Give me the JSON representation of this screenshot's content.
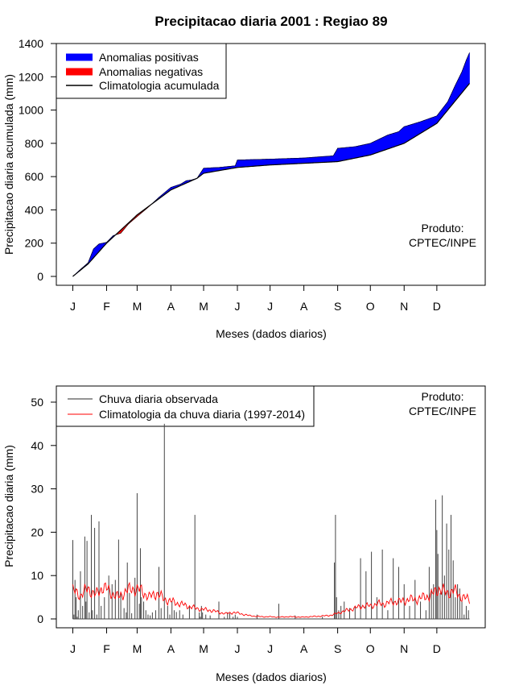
{
  "chart_data": [
    {
      "type": "area",
      "title": "Precipitacao diaria 2001 : Regiao 89",
      "xlabel": "Meses (dados diarios)",
      "ylabel": "Precipitacao diaria acumulada (mm)",
      "xlim": [
        1,
        365
      ],
      "ylim": [
        0,
        1400
      ],
      "yticks": [
        0,
        200,
        400,
        600,
        800,
        1000,
        1200,
        1400
      ],
      "month_labels": [
        "J",
        "F",
        "M",
        "A",
        "M",
        "J",
        "J",
        "A",
        "S",
        "O",
        "N",
        "D"
      ],
      "month_days": [
        1,
        32,
        60,
        91,
        121,
        152,
        182,
        213,
        244,
        274,
        305,
        335
      ],
      "legend": {
        "position": "top-left",
        "items": [
          {
            "label": "Anomalias positivas",
            "color": "#0000ff",
            "style": "thick-line"
          },
          {
            "label": "Anomalias negativas",
            "color": "#ff0000",
            "style": "thick-line"
          },
          {
            "label": "Climatologia acumulada",
            "color": "#000000",
            "style": "line"
          }
        ]
      },
      "annotation": [
        "Produto:",
        "CPTEC/INPE"
      ],
      "climatology_cumulative": {
        "day": [
          1,
          15,
          32,
          60,
          91,
          115,
          121,
          152,
          182,
          213,
          244,
          274,
          305,
          335,
          365
        ],
        "value": [
          0,
          75,
          200,
          370,
          520,
          590,
          620,
          655,
          670,
          680,
          690,
          730,
          800,
          920,
          1160
        ]
      },
      "observed_cumulative": {
        "day": [
          1,
          8,
          15,
          20,
          25,
          32,
          38,
          45,
          52,
          60,
          70,
          80,
          91,
          100,
          105,
          110,
          115,
          121,
          125,
          135,
          150,
          152,
          182,
          213,
          240,
          244,
          260,
          274,
          290,
          300,
          305,
          320,
          335,
          345,
          352,
          358,
          362,
          365
        ],
        "value": [
          0,
          42,
          82,
          165,
          195,
          205,
          245,
          260,
          315,
          360,
          415,
          475,
          535,
          555,
          575,
          580,
          590,
          650,
          652,
          655,
          665,
          700,
          705,
          712,
          725,
          770,
          780,
          800,
          850,
          870,
          900,
          930,
          965,
          1050,
          1150,
          1230,
          1300,
          1345
        ]
      }
    },
    {
      "type": "bar",
      "xlabel": "Meses (dados diarios)",
      "ylabel": "Precipitacao diaria (mm)",
      "xlim": [
        1,
        365
      ],
      "ylim": [
        0,
        50
      ],
      "yticks": [
        0,
        10,
        20,
        30,
        40,
        50
      ],
      "month_labels": [
        "J",
        "F",
        "M",
        "A",
        "M",
        "J",
        "J",
        "A",
        "S",
        "O",
        "N",
        "D"
      ],
      "month_days": [
        1,
        32,
        60,
        91,
        121,
        152,
        182,
        213,
        244,
        274,
        305,
        335
      ],
      "legend": {
        "position": "top-left",
        "items": [
          {
            "label": "Chuva diaria observada",
            "color": "#555555",
            "style": "line"
          },
          {
            "label": "Climatologia da chuva diaria (1997-2014)",
            "color": "#ff0000",
            "style": "line"
          }
        ]
      },
      "annotation": [
        "Produto:",
        "CPTEC/INPE"
      ],
      "observed_daily": {
        "day": [
          1,
          2,
          3,
          4,
          5,
          6,
          8,
          10,
          12,
          13,
          14,
          16,
          18,
          19,
          21,
          23,
          25,
          27,
          30,
          34,
          37,
          40,
          43,
          45,
          48,
          50,
          51,
          53,
          55,
          58,
          60,
          62,
          63,
          64,
          66,
          68,
          70,
          72,
          74,
          77,
          80,
          82,
          85,
          88,
          90,
          92,
          94,
          96,
          99,
          102,
          108,
          113,
          117,
          118,
          119,
          120,
          123,
          127,
          135,
          140,
          143,
          145,
          148,
          150,
          152,
          170,
          190,
          205,
          230,
          241,
          242,
          243,
          245,
          247,
          250,
          255,
          260,
          265,
          270,
          275,
          280,
          285,
          290,
          295,
          300,
          305,
          310,
          315,
          320,
          325,
          328,
          330,
          332,
          334,
          335,
          336,
          338,
          340,
          342,
          344,
          346,
          348,
          350,
          352,
          354,
          356,
          358,
          360,
          362,
          364
        ],
        "value": [
          18.2,
          1,
          9,
          5,
          0.5,
          2,
          11,
          3,
          19,
          4,
          18,
          1.5,
          24,
          2,
          21,
          1,
          22.5,
          3,
          5,
          10,
          8,
          9,
          18.3,
          6,
          2.5,
          1.5,
          13,
          6,
          1.3,
          9.5,
          29,
          3.5,
          16.3,
          5,
          4,
          2,
          1,
          0.8,
          1.5,
          2,
          12,
          2.5,
          45,
          3,
          1,
          4,
          2,
          1.6,
          2,
          1,
          3,
          24,
          1.5,
          0.5,
          3,
          1.5,
          1,
          0.8,
          4,
          0.5,
          1.5,
          1.3,
          0.5,
          1,
          0.5,
          1,
          3.5,
          0.8,
          0.5,
          13,
          24,
          5,
          2,
          3,
          4,
          2.5,
          3,
          14,
          11,
          15.5,
          5,
          16,
          2,
          14,
          12,
          8,
          3,
          9,
          4,
          2,
          12,
          7,
          8,
          27.5,
          20.5,
          15,
          6,
          28.5,
          10,
          22,
          16,
          24,
          13.5,
          5,
          8,
          7,
          4,
          1,
          3,
          2
        ],
        "full_series_description": ""
      },
      "climatology_daily": {
        "day": [
          1,
          8,
          15,
          22,
          29,
          36,
          43,
          50,
          57,
          64,
          71,
          78,
          85,
          92,
          99,
          106,
          113,
          120,
          127,
          134,
          141,
          148,
          155,
          162,
          169,
          176,
          183,
          190,
          197,
          204,
          211,
          218,
          225,
          232,
          239,
          246,
          253,
          260,
          267,
          274,
          281,
          288,
          295,
          302,
          309,
          316,
          323,
          330,
          337,
          344,
          351,
          358,
          365
        ],
        "value": [
          6.5,
          5.5,
          7,
          5.5,
          7.5,
          6,
          5,
          6.5,
          7,
          6.5,
          5,
          6,
          4.5,
          4,
          3.5,
          3,
          2.5,
          2.2,
          2,
          1.6,
          1.2,
          1.5,
          1.2,
          0.8,
          0.6,
          0.5,
          0.5,
          0.4,
          0.5,
          0.5,
          0.4,
          0.5,
          0.6,
          0.7,
          0.9,
          1.5,
          2,
          2.5,
          3,
          3,
          3.5,
          3.5,
          4,
          4,
          4.5,
          4.5,
          5,
          5.5,
          7,
          6,
          6.5,
          5,
          4.5
        ]
      }
    }
  ]
}
